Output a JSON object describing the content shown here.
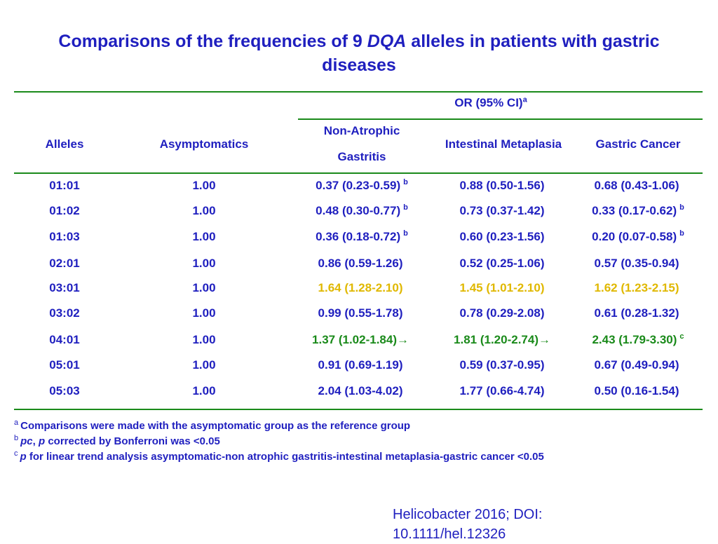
{
  "title": {
    "part1": "Comparisons of the frequencies of 9 ",
    "italic": "DQA",
    "part2": " alleles in patients with gastric diseases"
  },
  "table": {
    "header": {
      "group": "OR (95% CI)",
      "group_sup": "a",
      "alleles": "Alleles",
      "asymptomatics": "Asymptomatics",
      "non_atrophic_line1": "Non-Atrophic",
      "non_atrophic_line2": "Gastritis",
      "intestinal": "Intestinal Metaplasia",
      "gastric_cancer": "Gastric Cancer"
    },
    "rows": [
      {
        "allele": "01:01",
        "asym": "1.00",
        "nag": "0.37 (0.23-0.59)",
        "nag_sup": "b",
        "im": "0.88 (0.50-1.56)",
        "im_sup": "",
        "gc": "0.68 (0.43-1.06)",
        "gc_sup": ""
      },
      {
        "allele": "01:02",
        "asym": "1.00",
        "nag": "0.48 (0.30-0.77)",
        "nag_sup": "b",
        "im": "0.73 (0.37-1.42)",
        "im_sup": "",
        "gc": "0.33 (0.17-0.62)",
        "gc_sup": "b"
      },
      {
        "allele": "01:03",
        "asym": "1.00",
        "nag": "0.36 (0.18-0.72)",
        "nag_sup": "b",
        "im": "0.60 (0.23-1.56)",
        "im_sup": "",
        "gc": "0.20 (0.07-0.58)",
        "gc_sup": "b"
      },
      {
        "allele": "02:01",
        "asym": "1.00",
        "nag": "0.86 (0.59-1.26)",
        "nag_sup": "",
        "im": "0.52 (0.25-1.06)",
        "im_sup": "",
        "gc": "0.57 (0.35-0.94)",
        "gc_sup": ""
      },
      {
        "allele": "03:01",
        "asym": "1.00",
        "nag": "1.64 (1.28-2.10)",
        "nag_sup": "",
        "im": "1.45 (1.01-2.10)",
        "im_sup": "",
        "gc": "1.62 (1.23-2.15)",
        "gc_sup": ""
      },
      {
        "allele": "03:02",
        "asym": "1.00",
        "nag": "0.99 (0.55-1.78)",
        "nag_sup": "",
        "im": "0.78 (0.29-2.08)",
        "im_sup": "",
        "gc": "0.61 (0.28-1.32)",
        "gc_sup": ""
      },
      {
        "allele": "04:01",
        "asym": "1.00",
        "nag": "1.37 (1.02-1.84)→",
        "nag_sup": "",
        "im": "1.81 (1.20-2.74)→",
        "im_sup": "",
        "gc": "2.43 (1.79-3.30)",
        "gc_sup": "c"
      },
      {
        "allele": "05:01",
        "asym": "1.00",
        "nag": "0.91 (0.69-1.19)",
        "nag_sup": "",
        "im": "0.59 (0.37-0.95)",
        "im_sup": "",
        "gc": "0.67 (0.49-0.94)",
        "gc_sup": ""
      },
      {
        "allele": "05:03",
        "asym": "1.00",
        "nag": "2.04 (1.03-4.02)",
        "nag_sup": "",
        "im": "1.77 (0.66-4.74)",
        "im_sup": "",
        "gc": "0.50 (0.16-1.54)",
        "gc_sup": ""
      }
    ]
  },
  "footnotes": {
    "a_mark": "a",
    "a_text": "Comparisons were made with the asymptomatic group as the reference group",
    "b_mark": "b",
    "b_pc": "pc",
    "b_sep": ", ",
    "b_p": "p",
    "b_text": " corrected by Bonferroni was <0.05",
    "c_mark": "c",
    "c_p": "p",
    "c_text": " for linear trend analysis asymptomatic-non atrophic gastritis-intestinal metaplasia-gastric cancer <0.05"
  },
  "citation": {
    "line1": "Helicobacter 2016; DOI:",
    "line2": "10.1111/hel.12326"
  },
  "colors": {
    "text_blue": "#1f1fbf",
    "rule_green": "#1a8a1a",
    "highlight_yellow": "#e0b800",
    "highlight_green": "#1a8a1a"
  }
}
